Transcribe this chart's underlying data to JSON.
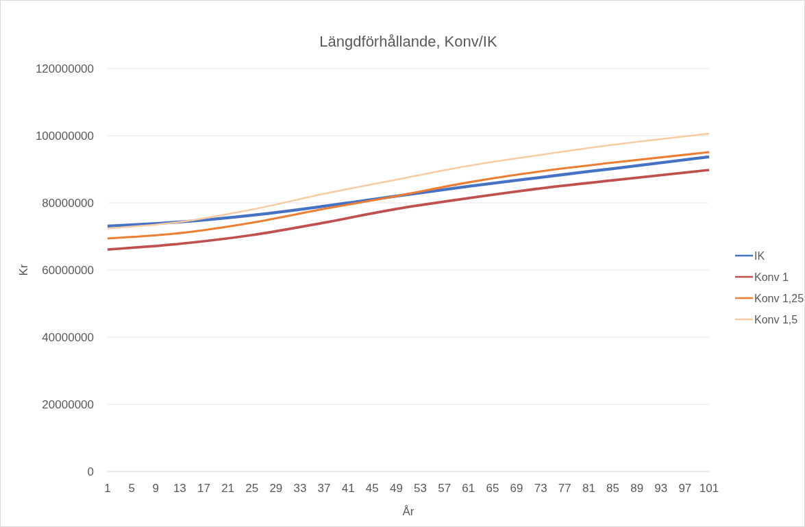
{
  "chart_data": {
    "type": "line",
    "title": "Längdförhållande, Konv/IK",
    "xlabel": "År",
    "ylabel": "Kr",
    "x": [
      1,
      13,
      25,
      37,
      49,
      61,
      73,
      85,
      101
    ],
    "xlim": [
      1,
      101
    ],
    "xticks": [
      1,
      5,
      9,
      13,
      17,
      21,
      25,
      29,
      33,
      37,
      41,
      45,
      49,
      53,
      57,
      61,
      65,
      69,
      73,
      77,
      81,
      85,
      89,
      93,
      97,
      101
    ],
    "ylim": [
      0,
      120000000
    ],
    "yticks": [
      0,
      20000000,
      40000000,
      60000000,
      80000000,
      100000000,
      120000000
    ],
    "grid": "y",
    "legend": "right",
    "marker": "none",
    "line_style": "solid",
    "series": [
      {
        "name": "IK",
        "color": "#4472c4",
        "values": [
          73100000,
          74300000,
          76300000,
          79000000,
          82000000,
          84900000,
          87600000,
          90200000,
          93700000
        ]
      },
      {
        "name": "Konv 1",
        "color": "#c0504d",
        "values": [
          66100000,
          67800000,
          70400000,
          74100000,
          78200000,
          81400000,
          84300000,
          86700000,
          89800000
        ]
      },
      {
        "name": "Konv 1,25",
        "color": "#ed7d31",
        "values": [
          69400000,
          71000000,
          74100000,
          78200000,
          82000000,
          86100000,
          89400000,
          92000000,
          95100000
        ]
      },
      {
        "name": "Konv 1,5",
        "color": "#f8cba0",
        "values": [
          72400000,
          74300000,
          78000000,
          82700000,
          86900000,
          91000000,
          94300000,
          97300000,
          100600000
        ]
      }
    ]
  }
}
